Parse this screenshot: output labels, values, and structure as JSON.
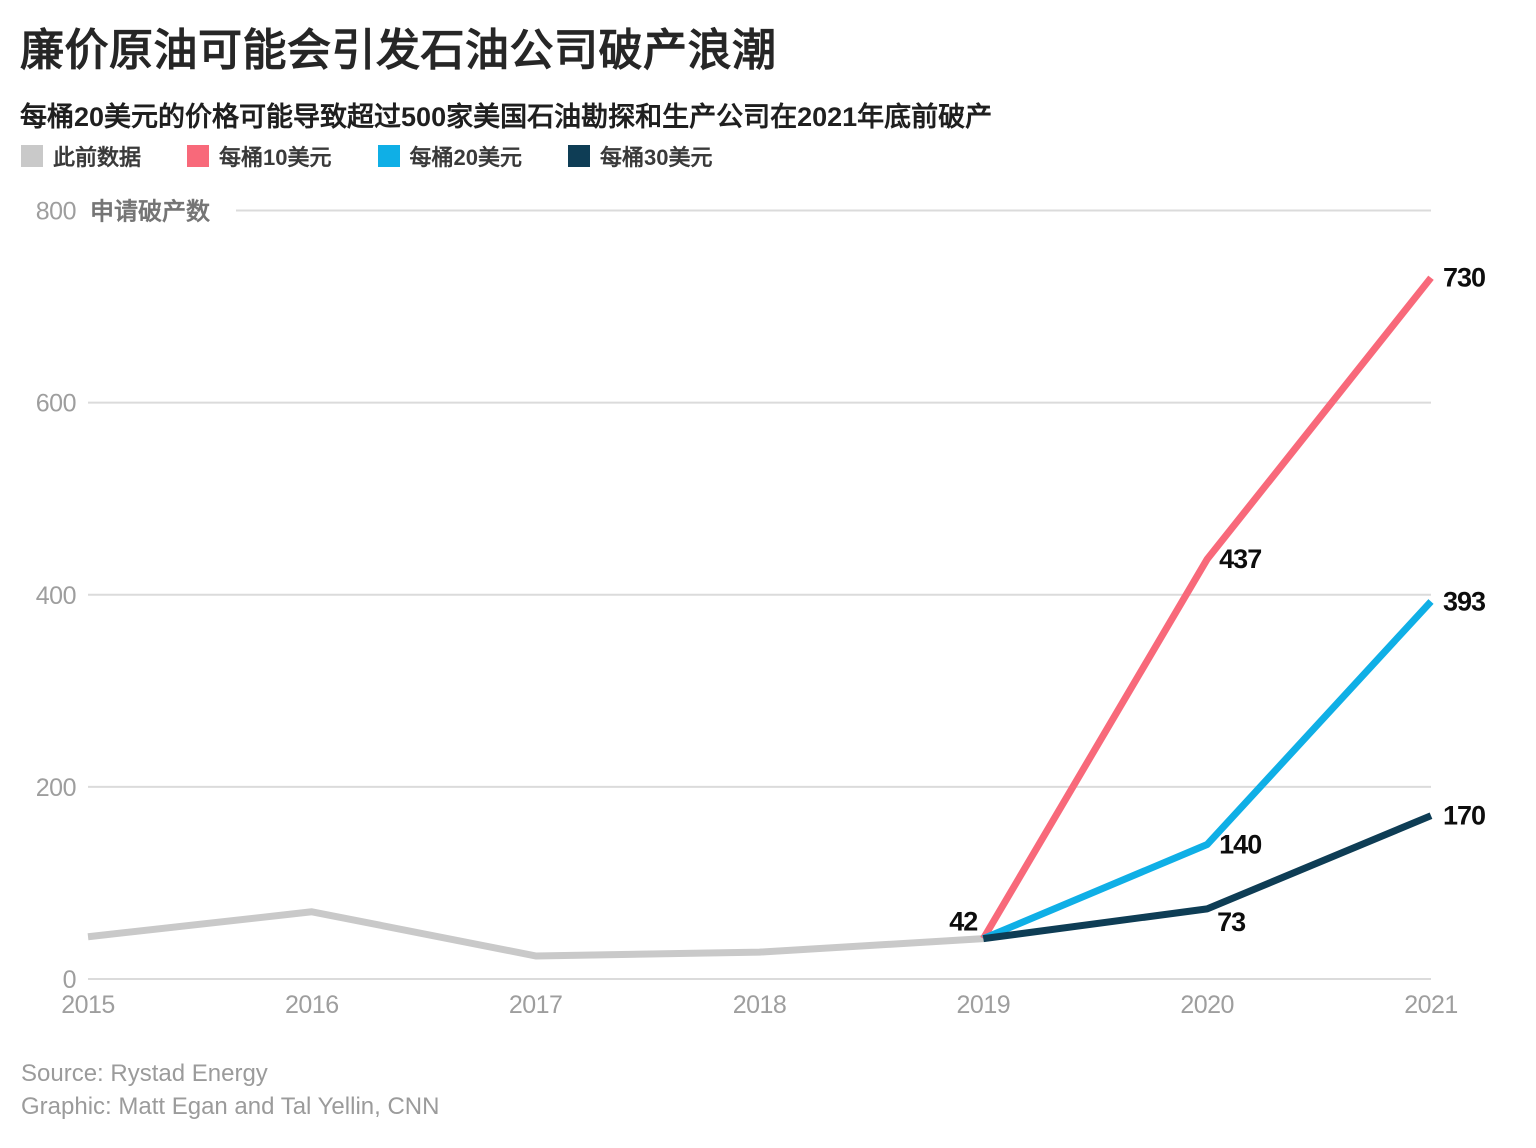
{
  "header": {
    "title": "廉价原油可能会引发石油公司破产浪潮",
    "subtitle": "每桶20美元的价格可能导致超过500家美国石油勘探和生产公司在2021年底前破产"
  },
  "legend": [
    {
      "key": "previous-data",
      "label": "此前数据",
      "color": "#c9c9c9"
    },
    {
      "key": "usd10-barrel",
      "label": "每桶10美元",
      "color": "#f8697a"
    },
    {
      "key": "usd20-barrel",
      "label": "每桶20美元",
      "color": "#0fafe6"
    },
    {
      "key": "usd30-barrel",
      "label": "每桶30美元",
      "color": "#0e3d55"
    }
  ],
  "chart_data": {
    "type": "line",
    "title": "廉价原油可能会引发石油公司破产浪潮",
    "ylabel": "申请破产数",
    "xlabel": "",
    "grid": true,
    "legend_position": "top",
    "ylim": [
      0,
      800
    ],
    "yticks": [
      0,
      200,
      400,
      600,
      800
    ],
    "xticks": [
      2015,
      2016,
      2017,
      2018,
      2019,
      2020,
      2021
    ],
    "series": [
      {
        "key": "previous-data",
        "name": "此前数据",
        "color": "#c9c9c9",
        "points": [
          [
            2015,
            44
          ],
          [
            2016,
            70
          ],
          [
            2017,
            24
          ],
          [
            2018,
            28
          ],
          [
            2019,
            42
          ]
        ]
      },
      {
        "key": "usd10-barrel",
        "name": "每桶10美元",
        "color": "#f8697a",
        "points": [
          [
            2019,
            42
          ],
          [
            2020,
            437
          ],
          [
            2021,
            730
          ]
        ]
      },
      {
        "key": "usd20-barrel",
        "name": "每桶20美元",
        "color": "#0fafe6",
        "points": [
          [
            2019,
            42
          ],
          [
            2020,
            140
          ],
          [
            2021,
            393
          ]
        ]
      },
      {
        "key": "usd30-barrel",
        "name": "每桶30美元",
        "color": "#0e3d55",
        "points": [
          [
            2019,
            42
          ],
          [
            2020,
            73
          ],
          [
            2021,
            170
          ]
        ]
      }
    ],
    "annotations": [
      {
        "text": "42",
        "x": 2019,
        "y": 42,
        "placement": "left-above"
      },
      {
        "text": "437",
        "x": 2020,
        "y": 437,
        "placement": "right"
      },
      {
        "text": "140",
        "x": 2020,
        "y": 140,
        "placement": "right"
      },
      {
        "text": "73",
        "x": 2020,
        "y": 73,
        "placement": "below-right"
      },
      {
        "text": "730",
        "x": 2021,
        "y": 730,
        "placement": "right"
      },
      {
        "text": "393",
        "x": 2021,
        "y": 393,
        "placement": "right"
      },
      {
        "text": "170",
        "x": 2021,
        "y": 170,
        "placement": "right"
      }
    ],
    "colors": {
      "grid": "#dbdbdb",
      "tick_label": "#9e9e9e",
      "axis_title": "#757575",
      "annotation": "#0d0d0d"
    }
  },
  "footer": {
    "source": "Source: Rystad Energy",
    "credit": "Graphic: Matt Egan and Tal Yellin, CNN"
  }
}
